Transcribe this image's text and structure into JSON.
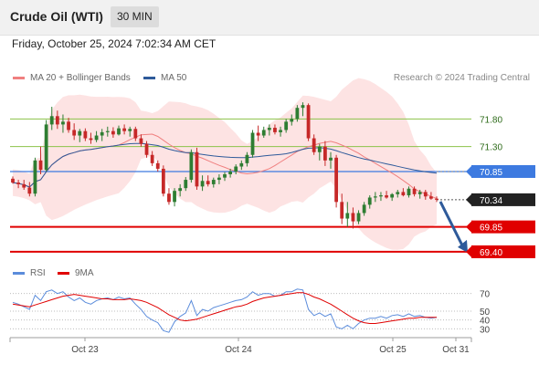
{
  "header": {
    "title": "Crude Oil (WTI)",
    "timeframe": "30 MIN",
    "datetime": "Friday, October 25, 2024 7:02:34 AM CET"
  },
  "legend": {
    "ma20": "MA 20 + Bollinger Bands",
    "ma50": "MA 50",
    "copyright": "Research © 2024 Trading Central",
    "rsi": "RSI",
    "ma9": "9MA"
  },
  "colors": {
    "ma20": "#f08080",
    "ma50": "#2e5a9a",
    "bands": "#fde0e0",
    "up": "#2e7d32",
    "down": "#c62828",
    "resistance": "#8bc34a",
    "pivot": "#3d7ae0",
    "support": "#e00000",
    "arrow": "#2e5a9a",
    "rsi": "#5b8cdb",
    "rsi_ma": "#e00000"
  },
  "chart_data": [
    {
      "type": "candlestick",
      "title": "Crude Oil (WTI)",
      "timeframe": "30 MIN",
      "ylim": [
        69.3,
        72.3
      ],
      "last_price": 70.34,
      "levels": [
        {
          "value": 71.8,
          "label": "71.80",
          "kind": "resistance"
        },
        {
          "value": 71.3,
          "label": "71.30",
          "kind": "resistance"
        },
        {
          "value": 70.85,
          "label": "70.85",
          "kind": "pivot"
        },
        {
          "value": 69.85,
          "label": "69.85",
          "kind": "support"
        },
        {
          "value": 69.4,
          "label": "69.40",
          "kind": "support"
        }
      ],
      "x_ticks": [
        "Oct 23",
        "Oct 24",
        "Oct 25",
        "Oct 31"
      ],
      "forecast": {
        "from": 70.34,
        "to": 69.4,
        "direction": "down"
      },
      "ohlc": [
        [
          70.72,
          70.76,
          70.63,
          70.65
        ],
        [
          70.65,
          70.7,
          70.55,
          70.62
        ],
        [
          70.62,
          70.7,
          70.52,
          70.56
        ],
        [
          70.56,
          70.66,
          70.4,
          70.45
        ],
        [
          70.45,
          71.1,
          70.4,
          71.05
        ],
        [
          71.05,
          71.3,
          70.8,
          70.88
        ],
        [
          70.88,
          71.78,
          70.85,
          71.7
        ],
        [
          71.7,
          72.02,
          71.6,
          71.85
        ],
        [
          71.85,
          71.95,
          71.62,
          71.7
        ],
        [
          71.7,
          71.88,
          71.55,
          71.75
        ],
        [
          71.75,
          71.82,
          71.55,
          71.6
        ],
        [
          71.6,
          71.72,
          71.42,
          71.5
        ],
        [
          71.5,
          71.62,
          71.38,
          71.58
        ],
        [
          71.58,
          71.63,
          71.4,
          71.45
        ],
        [
          71.45,
          71.55,
          71.35,
          71.42
        ],
        [
          71.42,
          71.58,
          71.38,
          71.5
        ],
        [
          71.5,
          71.62,
          71.4,
          71.56
        ],
        [
          71.56,
          71.66,
          71.48,
          71.58
        ],
        [
          71.58,
          71.65,
          71.46,
          71.52
        ],
        [
          71.52,
          71.68,
          71.5,
          71.63
        ],
        [
          71.63,
          71.7,
          71.52,
          71.58
        ],
        [
          71.58,
          71.66,
          71.48,
          71.62
        ],
        [
          71.62,
          71.66,
          71.4,
          71.45
        ],
        [
          71.45,
          71.52,
          71.3,
          71.35
        ],
        [
          71.35,
          71.4,
          71.1,
          71.15
        ],
        [
          71.15,
          71.22,
          70.95,
          71.0
        ],
        [
          71.0,
          71.05,
          70.85,
          70.9
        ],
        [
          70.9,
          70.96,
          70.4,
          70.45
        ],
        [
          70.45,
          70.55,
          70.25,
          70.3
        ],
        [
          70.3,
          70.55,
          70.22,
          70.5
        ],
        [
          70.5,
          70.62,
          70.4,
          70.55
        ],
        [
          70.55,
          70.75,
          70.5,
          70.7
        ],
        [
          70.7,
          71.25,
          70.65,
          71.2
        ],
        [
          71.2,
          71.28,
          70.52,
          70.58
        ],
        [
          70.58,
          70.78,
          70.5,
          70.68
        ],
        [
          70.68,
          70.78,
          70.58,
          70.62
        ],
        [
          70.62,
          70.74,
          70.56,
          70.7
        ],
        [
          70.7,
          70.8,
          70.62,
          70.74
        ],
        [
          70.74,
          70.84,
          70.68,
          70.8
        ],
        [
          70.8,
          70.9,
          70.74,
          70.85
        ],
        [
          70.85,
          70.98,
          70.8,
          70.94
        ],
        [
          70.94,
          71.05,
          70.88,
          71.0
        ],
        [
          71.0,
          71.2,
          70.94,
          71.15
        ],
        [
          71.15,
          71.6,
          71.1,
          71.55
        ],
        [
          71.55,
          71.68,
          71.4,
          71.5
        ],
        [
          71.5,
          71.66,
          71.46,
          71.6
        ],
        [
          71.6,
          71.7,
          71.5,
          71.64
        ],
        [
          71.64,
          71.7,
          71.52,
          71.56
        ],
        [
          71.56,
          71.66,
          71.48,
          71.6
        ],
        [
          71.6,
          71.8,
          71.55,
          71.75
        ],
        [
          71.75,
          71.88,
          71.68,
          71.8
        ],
        [
          71.8,
          72.05,
          71.75,
          72.0
        ],
        [
          72.0,
          72.1,
          71.85,
          72.05
        ],
        [
          72.05,
          72.08,
          71.4,
          71.45
        ],
        [
          71.45,
          71.52,
          71.15,
          71.2
        ],
        [
          71.2,
          71.35,
          71.05,
          71.3
        ],
        [
          71.3,
          71.4,
          70.95,
          71.05
        ],
        [
          71.05,
          71.2,
          70.9,
          71.1
        ],
        [
          71.1,
          71.15,
          70.2,
          70.3
        ],
        [
          70.3,
          70.45,
          69.9,
          70.0
        ],
        [
          70.0,
          70.3,
          69.85,
          70.1
        ],
        [
          70.1,
          70.2,
          69.82,
          69.95
        ],
        [
          69.95,
          70.15,
          69.9,
          70.1
        ],
        [
          70.1,
          70.3,
          70.05,
          70.25
        ],
        [
          70.25,
          70.42,
          70.18,
          70.38
        ],
        [
          70.38,
          70.48,
          70.3,
          70.4
        ],
        [
          70.4,
          70.48,
          70.32,
          70.42
        ],
        [
          70.42,
          70.5,
          70.36,
          70.38
        ],
        [
          70.38,
          70.46,
          70.32,
          70.44
        ],
        [
          70.44,
          70.52,
          70.38,
          70.48
        ],
        [
          70.48,
          70.55,
          70.4,
          70.42
        ],
        [
          70.42,
          70.58,
          70.38,
          70.54
        ],
        [
          70.54,
          70.58,
          70.4,
          70.44
        ],
        [
          70.44,
          70.52,
          70.36,
          70.48
        ],
        [
          70.48,
          70.52,
          70.34,
          70.4
        ],
        [
          70.4,
          70.48,
          70.34,
          70.36
        ],
        [
          70.36,
          70.4,
          70.3,
          70.34
        ]
      ]
    },
    {
      "type": "line",
      "title": "RSI",
      "ylim": [
        20,
        80
      ],
      "y_ticks": [
        70,
        50,
        40,
        30
      ],
      "series": [
        {
          "name": "RSI",
          "values": [
            60,
            58,
            55,
            52,
            68,
            62,
            72,
            74,
            70,
            72,
            66,
            62,
            65,
            60,
            58,
            62,
            64,
            65,
            63,
            66,
            64,
            65,
            58,
            52,
            44,
            40,
            37,
            28,
            26,
            38,
            44,
            48,
            62,
            45,
            52,
            50,
            54,
            56,
            58,
            60,
            62,
            63,
            66,
            72,
            68,
            70,
            70,
            67,
            68,
            72,
            72,
            75,
            74,
            52,
            45,
            48,
            44,
            47,
            32,
            30,
            34,
            30,
            36,
            40,
            42,
            42,
            44,
            42,
            45,
            46,
            44,
            47,
            44,
            45,
            43,
            42,
            43
          ]
        },
        {
          "name": "9MA",
          "values": [
            58,
            57,
            56,
            55,
            57,
            59,
            61,
            63,
            65,
            67,
            68,
            69,
            68,
            67,
            66,
            65,
            64,
            64,
            63,
            63,
            63,
            64,
            63,
            62,
            60,
            57,
            54,
            50,
            46,
            43,
            40,
            39,
            40,
            41,
            43,
            45,
            47,
            49,
            51,
            53,
            55,
            56,
            58,
            61,
            63,
            65,
            66,
            67,
            68,
            69,
            70,
            71,
            71,
            69,
            66,
            64,
            61,
            58,
            54,
            50,
            46,
            42,
            39,
            37,
            36,
            36,
            37,
            38,
            39,
            40,
            41,
            42,
            42,
            43,
            43,
            43,
            43
          ]
        }
      ]
    }
  ]
}
